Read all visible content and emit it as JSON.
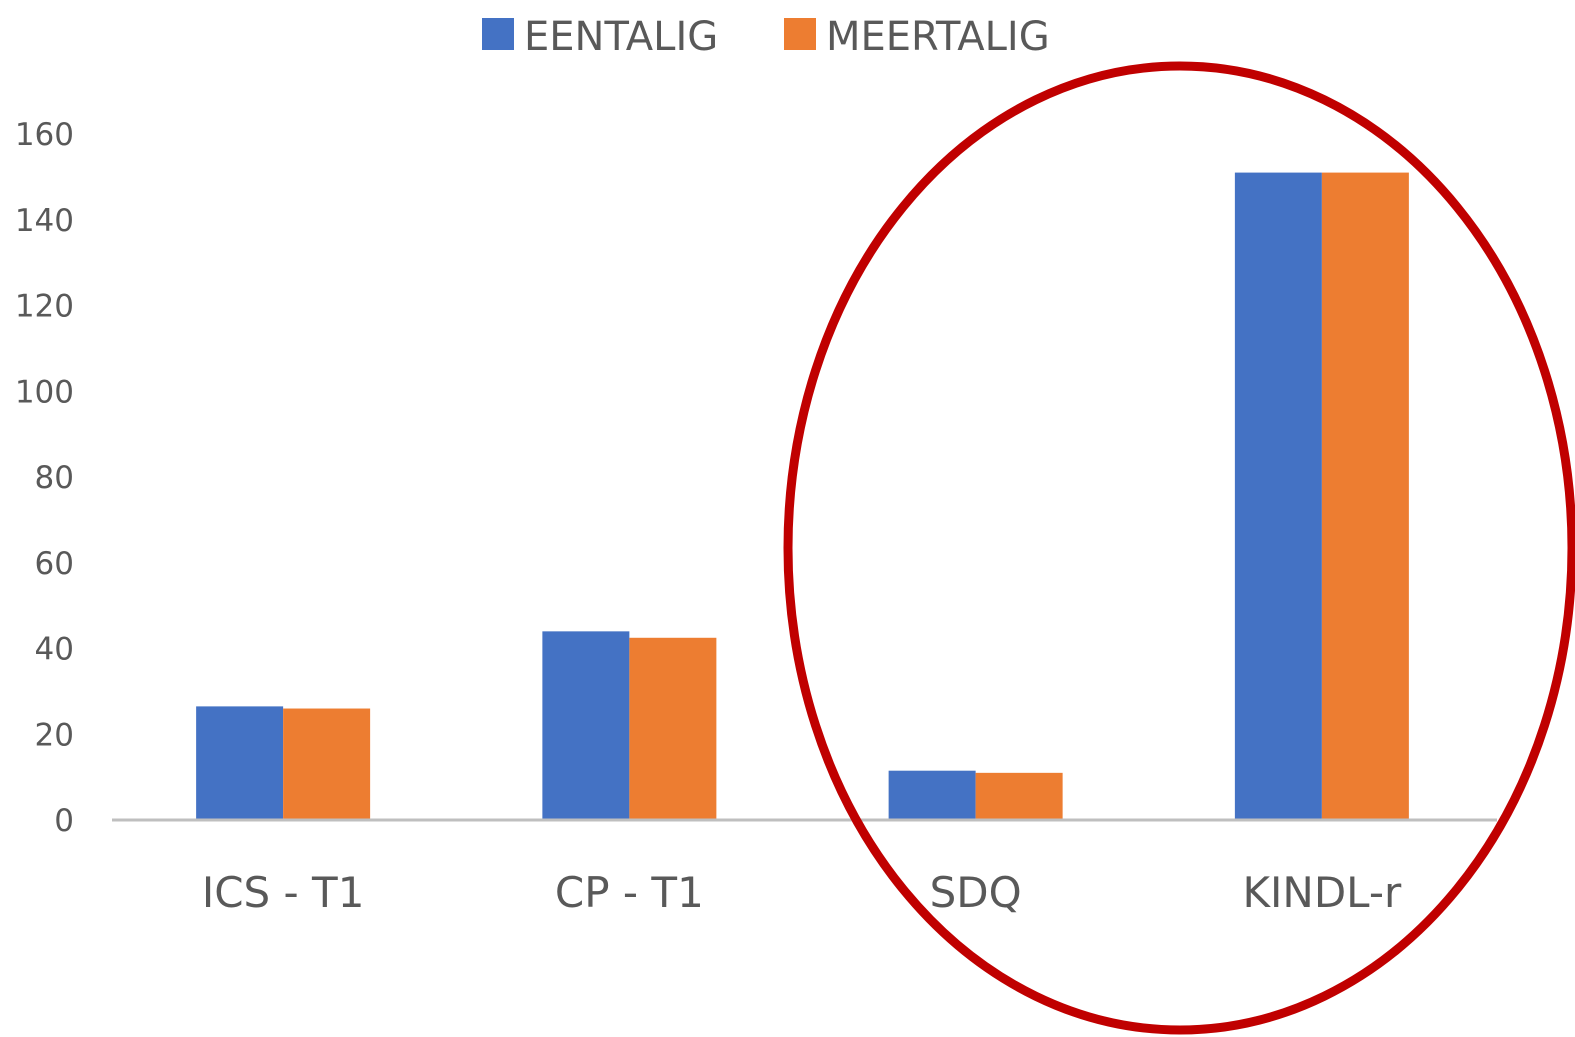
{
  "chart_data": {
    "type": "bar",
    "title": "",
    "xlabel": "",
    "ylabel": "",
    "categories": [
      "ICS - T1",
      "CP - T1",
      "SDQ",
      "KINDL-r"
    ],
    "series": [
      {
        "name": "EENTALIG",
        "color": "#4472C4",
        "values": [
          26.5,
          44,
          11.5,
          151
        ]
      },
      {
        "name": "MEERTALIG",
        "color": "#ED7D31",
        "values": [
          26,
          42.5,
          11,
          151
        ]
      }
    ],
    "ylim": [
      0,
      160
    ],
    "yticks": [
      0,
      20,
      40,
      60,
      80,
      100,
      120,
      140,
      160
    ],
    "grid": false,
    "legend_position": "top",
    "annotation": {
      "shape": "ellipse",
      "color": "#C00000",
      "encloses": [
        "SDQ",
        "KINDL-r"
      ]
    }
  }
}
